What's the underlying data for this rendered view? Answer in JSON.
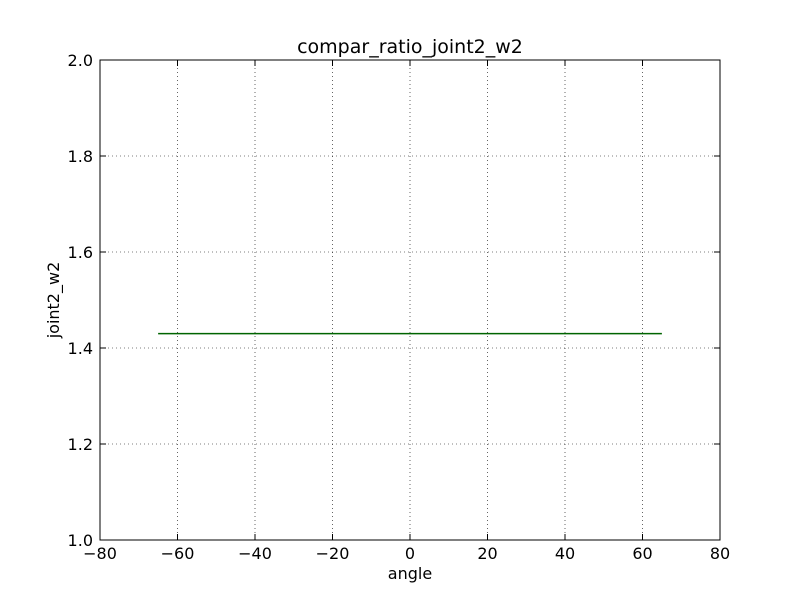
{
  "chart_data": {
    "type": "line",
    "title": "compar_ratio_joint2_w2",
    "xlabel": "angle",
    "ylabel": "joint2_w2",
    "xlim": [
      -80,
      80
    ],
    "ylim": [
      1.0,
      2.0
    ],
    "xticks": [
      -80,
      -60,
      -40,
      -20,
      0,
      20,
      40,
      60,
      80
    ],
    "yticks": [
      1.0,
      1.2,
      1.4,
      1.6,
      1.8,
      2.0
    ],
    "xtick_labels": [
      "−80",
      "−60",
      "−40",
      "−20",
      "0",
      "20",
      "40",
      "60",
      "80"
    ],
    "ytick_labels": [
      "1.0",
      "1.2",
      "1.4",
      "1.6",
      "1.8",
      "2.0"
    ],
    "grid": true,
    "series": [
      {
        "color": "#006400",
        "x": [
          -65,
          65
        ],
        "y": [
          1.43,
          1.43
        ]
      }
    ]
  }
}
